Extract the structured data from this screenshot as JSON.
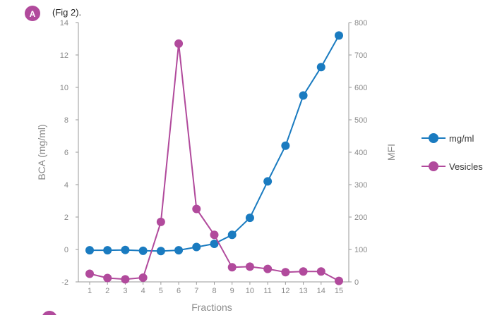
{
  "header": {
    "badge_letter": "A",
    "caption": "(Fig 2)."
  },
  "colors": {
    "series_mgml": "#1a7bc0",
    "series_vesicles": "#b14a9c",
    "badge": "#b14a9c",
    "axis": "#9a9a9a",
    "text": "#8a8a8a"
  },
  "chart_data": {
    "type": "line",
    "xlabel": "Fractions",
    "ylabel_left": "BCA (mg/ml)",
    "ylabel_right": "MFI",
    "x": [
      1,
      2,
      3,
      4,
      5,
      6,
      7,
      8,
      9,
      10,
      11,
      12,
      13,
      14,
      15
    ],
    "x_tick_labels": [
      "1",
      "2",
      "3",
      "4",
      "5",
      "6",
      "7",
      "8",
      "9",
      "10",
      "11",
      "12",
      "13",
      "14",
      "15"
    ],
    "ylim_left": [
      -2,
      14
    ],
    "yticks_left": [
      -2,
      0,
      2,
      4,
      6,
      8,
      10,
      12,
      14
    ],
    "ylim_right": [
      0,
      800
    ],
    "yticks_right": [
      0,
      100,
      200,
      300,
      400,
      500,
      600,
      700,
      800
    ],
    "grid": false,
    "legend_position": "right",
    "series": [
      {
        "name": "mg/ml",
        "axis": "left",
        "color": "#1a7bc0",
        "values": [
          -0.05,
          -0.05,
          -0.03,
          -0.08,
          -0.1,
          -0.05,
          0.15,
          0.35,
          0.9,
          1.95,
          4.2,
          6.4,
          9.5,
          11.25,
          13.2
        ]
      },
      {
        "name": "Vesicles",
        "axis": "right",
        "color": "#b14a9c",
        "values": [
          25,
          12,
          8,
          13,
          185,
          735,
          225,
          145,
          45,
          47,
          40,
          30,
          32,
          32,
          3
        ]
      }
    ]
  }
}
